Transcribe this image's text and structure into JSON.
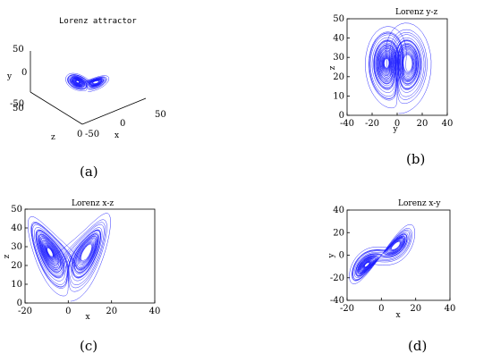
{
  "chart_data": [
    {
      "type": "line",
      "title": "Lorenz attractor",
      "xlabel": "x",
      "ylabel": "y",
      "zlabel": "z",
      "xticks": [
        "-50",
        "0",
        "50"
      ],
      "yticks": [
        "50",
        "0",
        "-50"
      ],
      "zticks": [
        "50",
        "0"
      ],
      "series": [
        {
          "x": [],
          "y": []
        }
      ],
      "color": "#1a1aff",
      "caption": "(a)"
    },
    {
      "type": "line",
      "title": "Lorenz y-z",
      "xlabel": "y",
      "ylabel": "z",
      "xlim": [
        -40,
        40
      ],
      "ylim": [
        0,
        50
      ],
      "xticks": [
        "-40",
        "-20",
        "0",
        "20",
        "40"
      ],
      "yticks": [
        "0",
        "10",
        "20",
        "30",
        "40",
        "50"
      ],
      "series": [
        {
          "x": [],
          "y": []
        }
      ],
      "color": "#1a1aff",
      "caption": "(b)"
    },
    {
      "type": "line",
      "title": "Lorenz x-z",
      "xlabel": "x",
      "ylabel": "z",
      "xlim": [
        -20,
        40
      ],
      "ylim": [
        0,
        50
      ],
      "xticks": [
        "-20",
        "0",
        "20",
        "40"
      ],
      "yticks": [
        "0",
        "10",
        "20",
        "30",
        "40",
        "50"
      ],
      "series": [
        {
          "x": [],
          "y": []
        }
      ],
      "color": "#1a1aff",
      "caption": "(c)"
    },
    {
      "type": "line",
      "title": "Lorenz x-y",
      "xlabel": "x",
      "ylabel": "y",
      "xlim": [
        -20,
        40
      ],
      "ylim": [
        -40,
        40
      ],
      "xticks": [
        "-20",
        "0",
        "20",
        "40"
      ],
      "yticks": [
        "-40",
        "-20",
        "0",
        "20",
        "40"
      ],
      "series": [
        {
          "x": [],
          "y": []
        }
      ],
      "color": "#1a1aff",
      "caption": "(d)"
    }
  ]
}
